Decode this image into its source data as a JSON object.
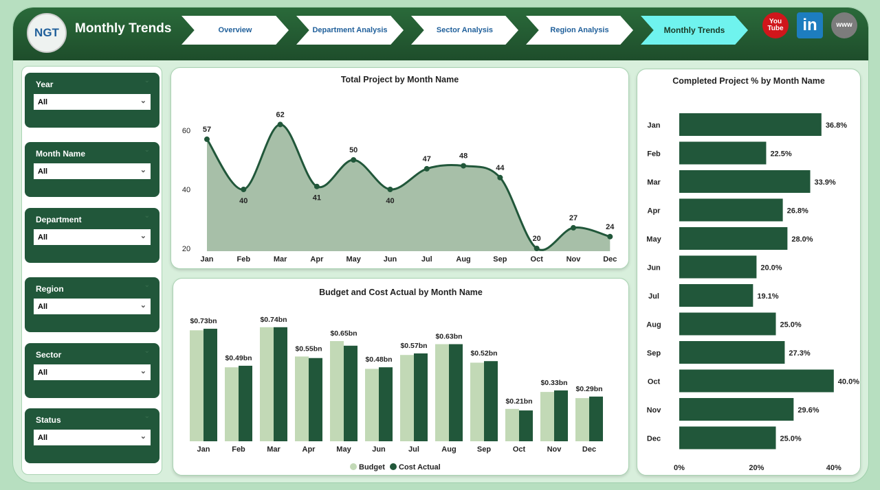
{
  "header": {
    "title": "Monthly Trends",
    "logo_text": "NGT",
    "nav": [
      {
        "label": "Overview"
      },
      {
        "label": "Department Analysis"
      },
      {
        "label": "Sector Analysis"
      },
      {
        "label": "Region Analysis"
      },
      {
        "label": "Monthly Trends",
        "active": true
      }
    ],
    "social": [
      {
        "icon": "youtube-icon",
        "text": "You Tube",
        "color": "#d0161b"
      },
      {
        "icon": "linkedin-icon",
        "text": "in",
        "color": "#1d7dbf"
      },
      {
        "icon": "globe-icon",
        "text": "www",
        "color": "#7c7c7c"
      }
    ]
  },
  "filters": [
    {
      "label": "Year",
      "value": "All"
    },
    {
      "label": "Month Name",
      "value": "All"
    },
    {
      "label": "Department",
      "value": "All"
    },
    {
      "label": "Region",
      "value": "All"
    },
    {
      "label": "Sector",
      "value": "All"
    },
    {
      "label": "Status",
      "value": "All"
    }
  ],
  "colors": {
    "dark_green": "#21573a",
    "light_green": "#c2d9b6",
    "area_fill": "#a7bfa8",
    "accent_active_tab": "#6ff3ee"
  },
  "chart_data": [
    {
      "type": "area",
      "title": "Total Project by Month Name",
      "categories": [
        "Jan",
        "Feb",
        "Mar",
        "Apr",
        "May",
        "Jun",
        "Jul",
        "Aug",
        "Sep",
        "Oct",
        "Nov",
        "Dec"
      ],
      "values": [
        57,
        40,
        62,
        41,
        50,
        40,
        47,
        48,
        44,
        20,
        27,
        24
      ],
      "yticks": [
        20,
        40,
        60
      ],
      "ylim": [
        20,
        62
      ],
      "grid": false
    },
    {
      "type": "bar",
      "title": "Budget and Cost Actual by Month Name",
      "categories": [
        "Jan",
        "Feb",
        "Mar",
        "Apr",
        "May",
        "Jun",
        "Jul",
        "Aug",
        "Sep",
        "Oct",
        "Nov",
        "Dec"
      ],
      "series": [
        {
          "name": "Budget",
          "color": "#c2d9b6",
          "values": [
            0.72,
            0.48,
            0.74,
            0.55,
            0.65,
            0.47,
            0.56,
            0.63,
            0.51,
            0.21,
            0.32,
            0.28
          ]
        },
        {
          "name": "Cost Actual",
          "color": "#21573a",
          "values": [
            0.73,
            0.49,
            0.74,
            0.54,
            0.62,
            0.48,
            0.57,
            0.63,
            0.52,
            0.2,
            0.33,
            0.29
          ]
        }
      ],
      "data_labels": [
        "$0.73bn",
        "$0.49bn",
        "$0.74bn",
        "$0.55bn",
        "$0.65bn",
        "$0.48bn",
        "$0.57bn",
        "$0.63bn",
        "$0.52bn",
        "$0.21bn",
        "$0.33bn",
        "$0.29bn"
      ],
      "legend": "bottom",
      "unit": "bn USD"
    },
    {
      "type": "bar",
      "orientation": "horizontal",
      "title": "Completed Project % by Month Name",
      "categories": [
        "Jan",
        "Feb",
        "Mar",
        "Apr",
        "May",
        "Jun",
        "Jul",
        "Aug",
        "Sep",
        "Oct",
        "Nov",
        "Dec"
      ],
      "values": [
        36.8,
        22.5,
        33.9,
        26.8,
        28.0,
        20.0,
        19.1,
        25.0,
        27.3,
        40.0,
        29.6,
        25.0
      ],
      "data_labels": [
        "36.8%",
        "22.5%",
        "33.9%",
        "26.8%",
        "28.0%",
        "20.0%",
        "19.1%",
        "25.0%",
        "27.3%",
        "40.0%",
        "29.6%",
        "25.0%"
      ],
      "xticks": [
        "0%",
        "20%",
        "40%"
      ],
      "xlim": [
        0,
        40
      ]
    }
  ]
}
